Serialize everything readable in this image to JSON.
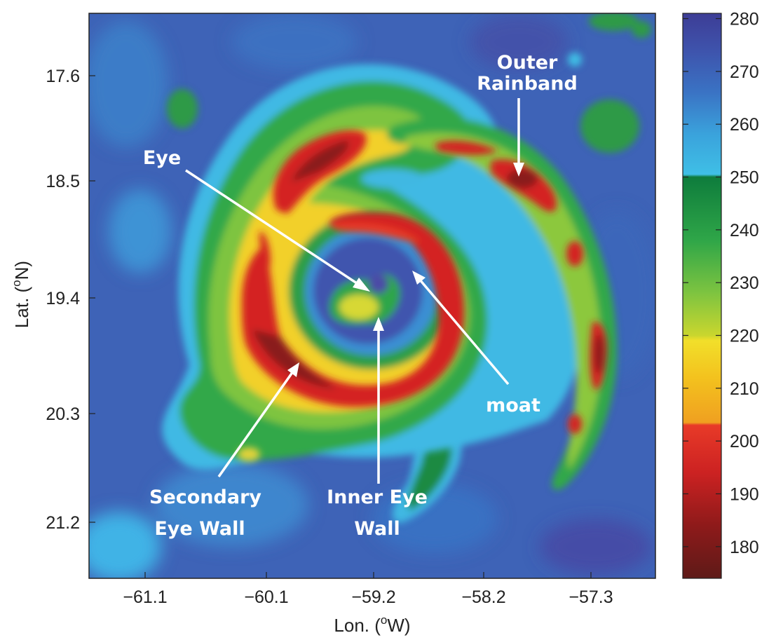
{
  "map": {
    "x_axis": {
      "label": "Lon. (",
      "label_sup": "o",
      "label_unit": "W)",
      "ticks": [
        "−61.1",
        "−60.1",
        "−59.2",
        "−58.2",
        "−57.3"
      ]
    },
    "y_axis": {
      "label": "Lat. (",
      "label_sup": "o",
      "label_unit": "N)",
      "ticks": [
        "17.6",
        "18.5",
        "19.4",
        "20.3",
        "21.2"
      ]
    },
    "annotations": {
      "eye": "Eye",
      "outer_1": "Outer",
      "outer_2": "Rainband",
      "moat": "moat",
      "secondary_1": "Secondary",
      "secondary_2": "Eye Wall",
      "inner_1": "Inner Eye",
      "inner_2": "Wall"
    },
    "features": [
      "Eye",
      "Inner Eye Wall",
      "moat",
      "Secondary Eye Wall",
      "Outer Rainband"
    ]
  },
  "colorbar": {
    "ticks": [
      "280",
      "270",
      "260",
      "250",
      "240",
      "230",
      "220",
      "210",
      "200",
      "190",
      "180"
    ],
    "range": [
      174,
      281
    ],
    "stops": [
      {
        "value": 174,
        "color": "#5e1a18"
      },
      {
        "value": 184,
        "color": "#8e1a1a"
      },
      {
        "value": 194,
        "color": "#cc2222"
      },
      {
        "value": 203,
        "color": "#e83a28"
      },
      {
        "value": 203.5,
        "color": "#f0a020"
      },
      {
        "value": 212,
        "color": "#f3c21e"
      },
      {
        "value": 219,
        "color": "#f2df2a"
      },
      {
        "value": 220,
        "color": "#c9d62e"
      },
      {
        "value": 228,
        "color": "#7ec440"
      },
      {
        "value": 238,
        "color": "#2fa648"
      },
      {
        "value": 250,
        "color": "#0e7c3c"
      },
      {
        "value": 250.5,
        "color": "#3fbfe6"
      },
      {
        "value": 258,
        "color": "#3aa3dc"
      },
      {
        "value": 266,
        "color": "#3a73c4"
      },
      {
        "value": 274,
        "color": "#3e53ac"
      },
      {
        "value": 281,
        "color": "#3d3d96"
      }
    ]
  }
}
